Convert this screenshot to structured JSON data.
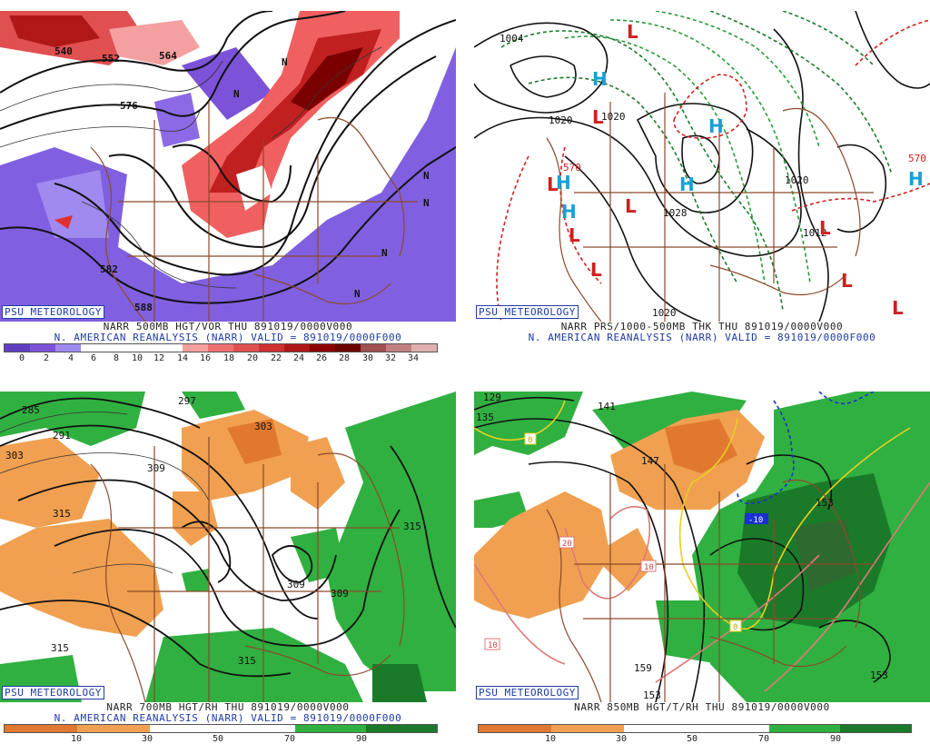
{
  "colors": {
    "dark_red": "#8b0000",
    "red": "#e03030",
    "pink": "#f4a0a0",
    "purple": "#7b52d8",
    "orange": "#f0a050",
    "green": "#30b040",
    "dark_green": "#1a7a2a",
    "map_line": "#8b4a2a",
    "badge": "#1f3aa8"
  },
  "panels": [
    {
      "badge": "PSU METEOROLOGY",
      "title_line1": "NARR 500MB HGT/VOR THU 891019/0000V000",
      "title_line2": "N. AMERICAN REANALYSIS (NARR) VALID = 891019/0000F000",
      "colorbar_ticks": [
        "0",
        "2",
        "4",
        "6",
        "8",
        "10",
        "12",
        "14",
        "16",
        "18",
        "20",
        "22",
        "24",
        "26",
        "28",
        "30",
        "32",
        "34"
      ],
      "labels": [
        {
          "t": "540"
        },
        {
          "t": "552"
        },
        {
          "t": "564"
        },
        {
          "t": "576"
        },
        {
          "t": "582"
        },
        {
          "t": "588"
        },
        {
          "t": "N"
        },
        {
          "t": "N"
        },
        {
          "t": "N"
        },
        {
          "t": "N"
        },
        {
          "t": "N"
        },
        {
          "t": "N"
        }
      ]
    },
    {
      "badge": "PSU METEOROLOGY",
      "title_line1": "NARR PRS/1000-500MB THK THU 891019/0000V000",
      "title_line2": "N. AMERICAN REANALYSIS (NARR) VALID = 891019/0000F000",
      "labels": [
        {
          "t": "1004"
        },
        {
          "t": "1020"
        },
        {
          "t": "1020"
        },
        {
          "t": "1028"
        },
        {
          "t": "1020"
        },
        {
          "t": "1012"
        },
        {
          "t": "1020"
        },
        {
          "t": "570"
        },
        {
          "t": "570"
        },
        {
          "t": "H"
        },
        {
          "t": "H"
        },
        {
          "t": "H"
        },
        {
          "t": "H"
        },
        {
          "t": "H"
        },
        {
          "t": "H"
        },
        {
          "t": "L"
        },
        {
          "t": "L"
        },
        {
          "t": "L"
        },
        {
          "t": "L"
        },
        {
          "t": "L"
        },
        {
          "t": "L"
        },
        {
          "t": "L"
        },
        {
          "t": "L"
        },
        {
          "t": "L"
        }
      ]
    },
    {
      "badge": "PSU METEOROLOGY",
      "title_line1": "NARR 700MB HGT/RH THU 891019/0000V000",
      "title_line2": "N. AMERICAN REANALYSIS (NARR) VALID = 891019/0000F000",
      "colorbar_ticks": [
        "10",
        "30",
        "50",
        "70",
        "90"
      ],
      "labels": [
        {
          "t": "285"
        },
        {
          "t": "291"
        },
        {
          "t": "297"
        },
        {
          "t": "303"
        },
        {
          "t": "303"
        },
        {
          "t": "309"
        },
        {
          "t": "315"
        },
        {
          "t": "315"
        },
        {
          "t": "309"
        },
        {
          "t": "309"
        },
        {
          "t": "315"
        },
        {
          "t": "315"
        }
      ]
    },
    {
      "badge": "PSU METEOROLOGY",
      "title_line1": "NARR 850MB HGT/T/RH THU 891019/0000V000",
      "title_line2": "",
      "colorbar_ticks": [
        "10",
        "30",
        "50",
        "70",
        "90"
      ],
      "labels": [
        {
          "t": "129"
        },
        {
          "t": "135"
        },
        {
          "t": "141"
        },
        {
          "t": "147"
        },
        {
          "t": "153"
        },
        {
          "t": "153"
        },
        {
          "t": "159"
        },
        {
          "t": "153"
        },
        {
          "t": "0"
        },
        {
          "t": "0"
        },
        {
          "t": "-10"
        },
        {
          "t": "10"
        },
        {
          "t": "10"
        },
        {
          "t": "20"
        }
      ]
    }
  ]
}
